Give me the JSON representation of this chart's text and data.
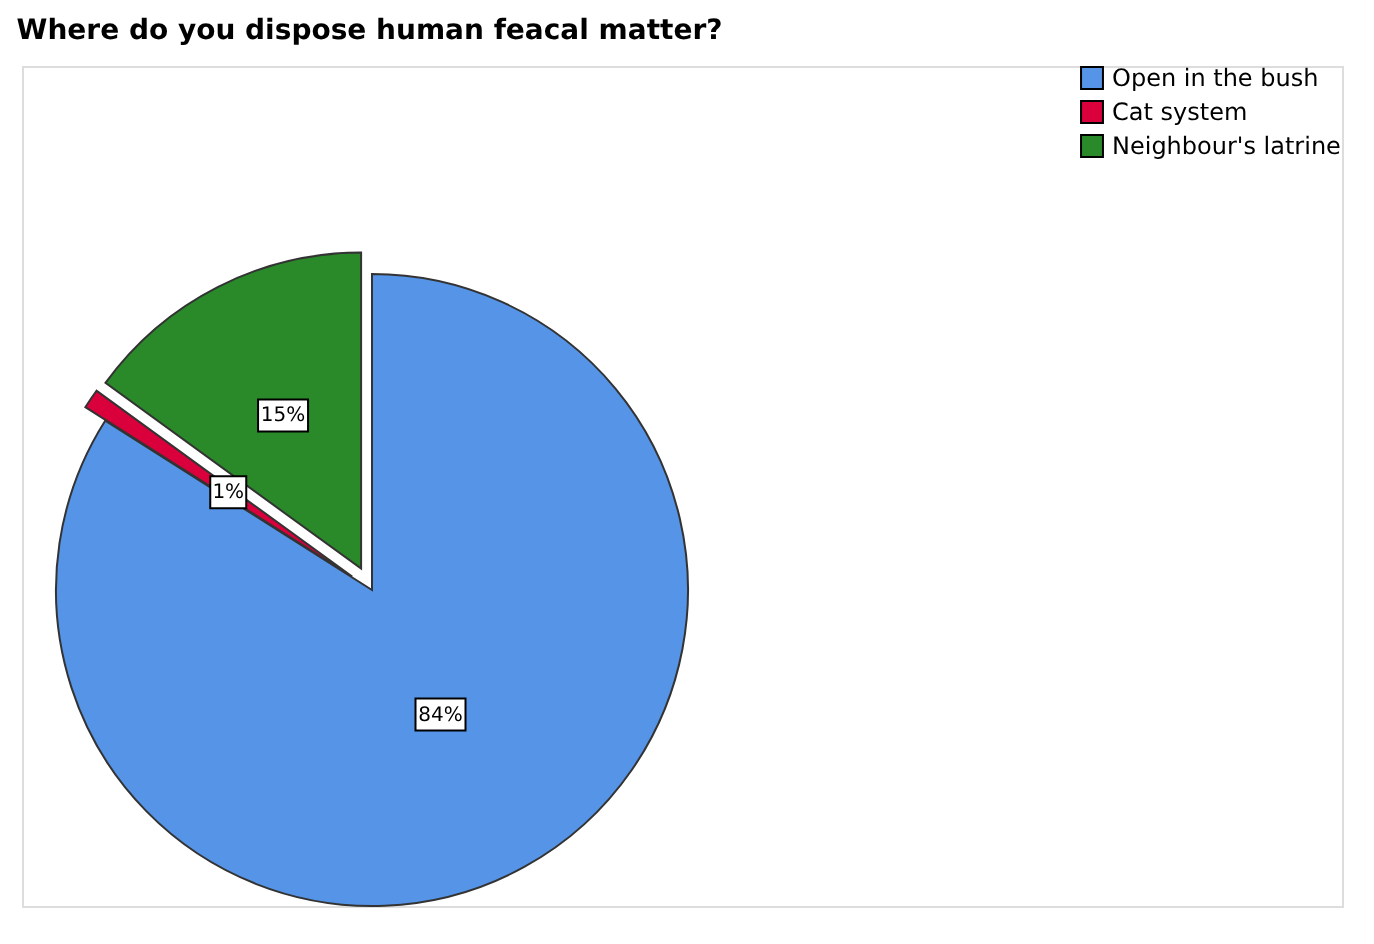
{
  "chart_data": {
    "type": "pie",
    "title": "Where do you dispose human feacal matter?",
    "categories": [
      "Open in the bush",
      "Cat system",
      "Neighbour's latrine"
    ],
    "values": [
      84,
      1,
      15
    ],
    "colors": [
      "#5594e6",
      "#d9003c",
      "#2a8a2a"
    ],
    "value_labels": [
      "84%",
      "1%",
      "15%"
    ],
    "legend": "top right"
  }
}
